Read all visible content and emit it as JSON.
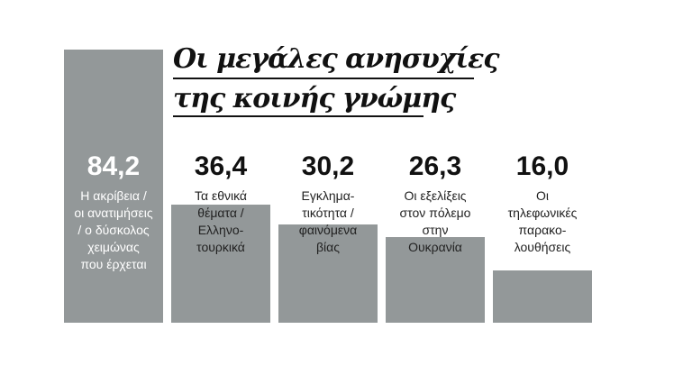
{
  "title": [
    "Οι μεγάλες ανησυχίες",
    "της κοινής γνώμης"
  ],
  "chart_data": {
    "type": "bar",
    "categories": [
      "Η ακρίβεια / οι ανατιμήσεις / ο δύσκολος χειμώνας που έρχεται",
      "Τα εθνικά θέματα / Ελληνο-τουρκικά",
      "Εγκλημα-τικότητα / φαινόμενα βίας",
      "Οι εξελίξεις στον πόλεμο στην Ουκρανία",
      "Οι τηλεφωνικές παρακο-λουθήσεις"
    ],
    "category_lines": [
      [
        "Η ακρίβεια /",
        "οι ανατιμήσεις",
        "/ ο δύσκολος",
        "χειμώνας",
        "που έρχεται"
      ],
      [
        "Τα εθνικά",
        "θέματα /",
        "Ελληνο-",
        "τουρκικά"
      ],
      [
        "Εγκλημα-",
        "τικότητα /",
        "φαινόμενα",
        "βίας"
      ],
      [
        "Οι εξελίξεις",
        "στον πόλεμο",
        "στην",
        "Ουκρανία"
      ],
      [
        "Οι",
        "τηλεφωνικές",
        "παρακο-",
        "λουθήσεις"
      ]
    ],
    "values": [
      84.2,
      36.4,
      30.2,
      26.3,
      16.0
    ],
    "value_labels": [
      "84,2",
      "36,4",
      "30,2",
      "26,3",
      "16,0"
    ],
    "bar_color": "#939899"
  }
}
